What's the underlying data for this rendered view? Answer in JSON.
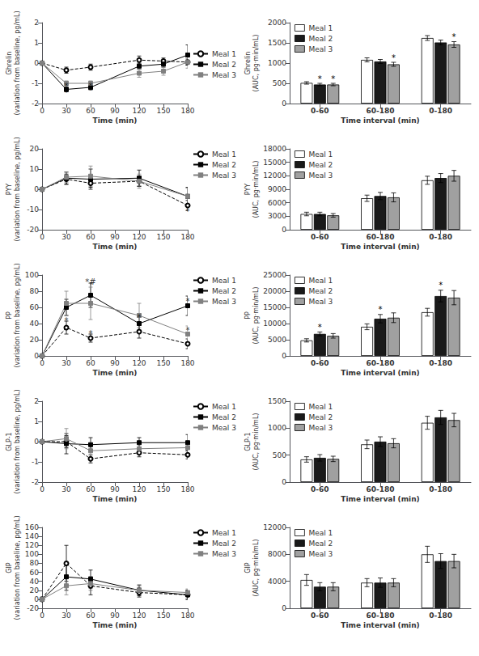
{
  "chart_data": [
    {
      "type": "line",
      "x": [
        0,
        30,
        60,
        120,
        150,
        180
      ],
      "xlabel": "Time (min)",
      "ylabel": "Ghrelin\n(variation from baseline, pg/mL)",
      "xlim": [
        0,
        180
      ],
      "xticks": [
        0,
        30,
        60,
        90,
        120,
        150,
        180
      ],
      "ylim": [
        -2,
        2
      ],
      "yticks": [
        -2,
        -1,
        0,
        1,
        2
      ],
      "grid": false,
      "legend": "center right",
      "series": [
        {
          "name": "Meal 1",
          "color": "#000000",
          "marker": "empty_circle",
          "line_style": "dashed",
          "values": [
            0,
            -0.35,
            -0.2,
            0.15,
            0.1,
            0.05
          ],
          "errors": [
            0,
            0.15,
            0.15,
            0.2,
            0.15,
            0.15
          ]
        },
        {
          "name": "Meal 2",
          "color": "#000000",
          "marker": "square",
          "line_style": "solid",
          "values": [
            0,
            -1.3,
            -1.2,
            -0.15,
            -0.05,
            0.4
          ],
          "errors": [
            0,
            0.12,
            0.12,
            0.15,
            0.15,
            0.5
          ]
        },
        {
          "name": "Meal 3",
          "color": "#808080",
          "marker": "square",
          "line_style": "solid",
          "values": [
            0,
            -1.0,
            -1.0,
            -0.5,
            -0.4,
            0.05
          ],
          "errors": [
            0,
            0.12,
            0.12,
            0.2,
            0.2,
            0.3
          ]
        }
      ],
      "annotations": [
        {
          "x": 30,
          "y": -1.44,
          "text": "*"
        },
        {
          "x": 60,
          "y": -1.34,
          "text": "*"
        },
        {
          "x": 30,
          "y": -1.14,
          "text": "*"
        },
        {
          "x": 60,
          "y": -1.14,
          "text": "*"
        }
      ]
    },
    {
      "type": "bar",
      "categories": [
        "0-60",
        "60-180",
        "0-180"
      ],
      "xlabel": "Time interval (min)",
      "ylabel": "Ghrelin\n(AUC, pg·min/mL)",
      "ylim": [
        0,
        2000
      ],
      "yticks": [
        0,
        500,
        1000,
        1500,
        2000
      ],
      "grid": false,
      "legend": "upper left",
      "series": [
        {
          "name": "Meal 1",
          "color": "#ffffff",
          "values": [
            510,
            1080,
            1620
          ],
          "errors": [
            30,
            50,
            60
          ]
        },
        {
          "name": "Meal 2",
          "color": "#1a1a1a",
          "values": [
            470,
            1040,
            1510
          ],
          "errors": [
            30,
            50,
            60
          ]
        },
        {
          "name": "Meal 3",
          "color": "#a0a0a0",
          "values": [
            470,
            970,
            1460
          ],
          "errors": [
            30,
            50,
            70
          ]
        }
      ],
      "annotations": [
        {
          "category": "0-60",
          "series": "Meal 2",
          "text": "*"
        },
        {
          "category": "0-60",
          "series": "Meal 3",
          "text": "*"
        },
        {
          "category": "60-180",
          "series": "Meal 3",
          "text": "*"
        },
        {
          "category": "0-180",
          "series": "Meal 3",
          "text": "*"
        }
      ]
    },
    {
      "type": "line",
      "x": [
        0,
        30,
        60,
        120,
        180
      ],
      "xlabel": "Time (min)",
      "ylabel": "PYY\n(variation from baseline, pg/mL)",
      "xlim": [
        0,
        180
      ],
      "xticks": [
        0,
        30,
        60,
        90,
        120,
        150,
        180
      ],
      "ylim": [
        -20,
        20
      ],
      "yticks": [
        -20,
        -10,
        0,
        10,
        20
      ],
      "grid": false,
      "legend": "upper right",
      "series": [
        {
          "name": "Meal 1",
          "color": "#000000",
          "marker": "empty_circle",
          "line_style": "dashed",
          "values": [
            0,
            5.0,
            3.0,
            4.0,
            -8.0
          ],
          "errors": [
            0,
            2.5,
            2.0,
            2.5,
            2.5
          ]
        },
        {
          "name": "Meal 2",
          "color": "#000000",
          "marker": "square",
          "line_style": "solid",
          "values": [
            0,
            5.5,
            5.0,
            5.5,
            -3.5
          ],
          "errors": [
            0,
            3.0,
            5.0,
            4.0,
            4.5
          ]
        },
        {
          "name": "Meal 3",
          "color": "#808080",
          "marker": "square",
          "line_style": "solid",
          "values": [
            0,
            6.0,
            6.5,
            4.0,
            -3.5
          ],
          "errors": [
            0,
            2.5,
            5.0,
            3.5,
            4.0
          ]
        }
      ],
      "annotations": [
        {
          "x": 180,
          "y": -11.0,
          "text": "*"
        }
      ]
    },
    {
      "type": "bar",
      "categories": [
        "0-60",
        "60-180",
        "0-180"
      ],
      "xlabel": "Time interval (min)",
      "ylabel": "PYY\n(AUC, pg·min/mL)",
      "ylim": [
        0,
        18000
      ],
      "yticks": [
        0,
        3000,
        6000,
        9000,
        12000,
        15000,
        18000
      ],
      "grid": false,
      "legend": "upper left",
      "series": [
        {
          "name": "Meal 1",
          "color": "#ffffff",
          "values": [
            3500,
            7000,
            11000
          ],
          "errors": [
            400,
            700,
            900
          ]
        },
        {
          "name": "Meal 2",
          "color": "#1a1a1a",
          "values": [
            3500,
            7500,
            11500
          ],
          "errors": [
            400,
            800,
            1000
          ]
        },
        {
          "name": "Meal 3",
          "color": "#a0a0a0",
          "values": [
            3200,
            7200,
            12000
          ],
          "errors": [
            400,
            1000,
            1200
          ]
        }
      ]
    },
    {
      "type": "line",
      "x": [
        0,
        30,
        60,
        120,
        180
      ],
      "xlabel": "Time (min)",
      "ylabel": "PP\n(variation from baseline, pg/mL)",
      "xlim": [
        0,
        180
      ],
      "xticks": [
        0,
        30,
        60,
        90,
        120,
        150,
        180
      ],
      "ylim": [
        0,
        100
      ],
      "yticks": [
        0,
        20,
        40,
        60,
        80,
        100
      ],
      "grid": false,
      "legend": "upper right",
      "series": [
        {
          "name": "Meal 1",
          "color": "#000000",
          "marker": "empty_circle",
          "line_style": "dashed",
          "values": [
            0,
            35,
            22,
            30,
            15
          ],
          "errors": [
            0,
            8,
            5,
            8,
            6
          ]
        },
        {
          "name": "Meal 2",
          "color": "#000000",
          "marker": "square",
          "line_style": "solid",
          "values": [
            0,
            60,
            75,
            40,
            62
          ],
          "errors": [
            0,
            10,
            15,
            8,
            12
          ]
        },
        {
          "name": "Meal 3",
          "color": "#808080",
          "marker": "square",
          "line_style": "solid",
          "values": [
            0,
            65,
            65,
            50,
            27
          ],
          "errors": [
            0,
            15,
            20,
            15,
            10
          ]
        }
      ],
      "annotations": [
        {
          "x": 30,
          "y": 44,
          "text": "*"
        },
        {
          "x": 60,
          "y": 28,
          "text": "*"
        },
        {
          "x": 60,
          "y": 92,
          "text": "*#"
        },
        {
          "x": 120,
          "y": 48,
          "text": "*"
        },
        {
          "x": 180,
          "y": 68,
          "text": "*"
        },
        {
          "x": 180,
          "y": 32,
          "text": "*"
        }
      ]
    },
    {
      "type": "bar",
      "categories": [
        "0-60",
        "60-180",
        "0-180"
      ],
      "xlabel": "Time interval (min)",
      "ylabel": "PP\n(AUC, pg·min/mL)",
      "ylim": [
        0,
        25000
      ],
      "yticks": [
        0,
        5000,
        10000,
        15000,
        20000,
        25000
      ],
      "grid": false,
      "legend": "upper left",
      "series": [
        {
          "name": "Meal 1",
          "color": "#ffffff",
          "values": [
            4800,
            9000,
            13500
          ],
          "errors": [
            500,
            900,
            1200
          ]
        },
        {
          "name": "Meal 2",
          "color": "#1a1a1a",
          "values": [
            6800,
            11500,
            18500
          ],
          "errors": [
            600,
            1300,
            1800
          ]
        },
        {
          "name": "Meal 3",
          "color": "#a0a0a0",
          "values": [
            6200,
            11800,
            18000
          ],
          "errors": [
            700,
            1500,
            2200
          ]
        }
      ],
      "annotations": [
        {
          "category": "0-60",
          "series": "Meal 2",
          "text": "*"
        },
        {
          "category": "60-180",
          "series": "Meal 2",
          "text": "*"
        },
        {
          "category": "0-180",
          "series": "Meal 2",
          "text": "*"
        }
      ]
    },
    {
      "type": "line",
      "x": [
        0,
        30,
        60,
        120,
        180
      ],
      "xlabel": "Time (min)",
      "ylabel": "GLP-1\n(variation from baseline, pg/mL)",
      "xlim": [
        0,
        180
      ],
      "xticks": [
        0,
        30,
        60,
        90,
        120,
        150,
        180
      ],
      "ylim": [
        -2,
        2
      ],
      "yticks": [
        -2,
        -1,
        0,
        1,
        2
      ],
      "grid": false,
      "legend": "upper right",
      "series": [
        {
          "name": "Meal 1",
          "color": "#000000",
          "marker": "empty_circle",
          "line_style": "dashed",
          "values": [
            0,
            0.0,
            -0.85,
            -0.55,
            -0.65
          ],
          "errors": [
            0,
            0.3,
            0.2,
            0.2,
            0.2
          ]
        },
        {
          "name": "Meal 2",
          "color": "#000000",
          "marker": "square",
          "line_style": "solid",
          "values": [
            0,
            -0.1,
            -0.15,
            -0.05,
            -0.05
          ],
          "errors": [
            0,
            0.5,
            0.35,
            0.25,
            0.4
          ]
        },
        {
          "name": "Meal 3",
          "color": "#808080",
          "marker": "square",
          "line_style": "solid",
          "values": [
            0,
            0.15,
            -0.45,
            -0.35,
            -0.3
          ],
          "errors": [
            0,
            0.5,
            0.35,
            0.25,
            0.3
          ]
        }
      ]
    },
    {
      "type": "bar",
      "categories": [
        "0-60",
        "60-180",
        "0-180"
      ],
      "xlabel": "Time interval (min)",
      "ylabel": "GLP-1\n(AUC, pg·min/mL)",
      "ylim": [
        0,
        1500
      ],
      "yticks": [
        0,
        500,
        1000,
        1500
      ],
      "grid": false,
      "legend": "upper left",
      "series": [
        {
          "name": "Meal 1",
          "color": "#ffffff",
          "values": [
            420,
            700,
            1100
          ],
          "errors": [
            50,
            80,
            120
          ]
        },
        {
          "name": "Meal 2",
          "color": "#1a1a1a",
          "values": [
            450,
            750,
            1200
          ],
          "errors": [
            60,
            90,
            130
          ]
        },
        {
          "name": "Meal 3",
          "color": "#a0a0a0",
          "values": [
            430,
            720,
            1150
          ],
          "errors": [
            50,
            85,
            125
          ]
        }
      ]
    },
    {
      "type": "line",
      "x": [
        0,
        30,
        60,
        120,
        180
      ],
      "xlabel": "Time (min)",
      "ylabel": "GIP\n(variation from baseline, pg/mL)",
      "xlim": [
        0,
        180
      ],
      "xticks": [
        0,
        30,
        60,
        90,
        120,
        150,
        180
      ],
      "ylim": [
        -20,
        160
      ],
      "yticks": [
        -20,
        0,
        20,
        40,
        60,
        80,
        100,
        120,
        140,
        160
      ],
      "grid": false,
      "legend": "upper right",
      "series": [
        {
          "name": "Meal 1",
          "color": "#000000",
          "marker": "empty_circle",
          "line_style": "dashed",
          "values": [
            0,
            80,
            30,
            15,
            10
          ],
          "errors": [
            0,
            40,
            20,
            10,
            10
          ]
        },
        {
          "name": "Meal 2",
          "color": "#000000",
          "marker": "square",
          "line_style": "solid",
          "values": [
            0,
            50,
            45,
            20,
            10
          ],
          "errors": [
            0,
            30,
            20,
            12,
            10
          ]
        },
        {
          "name": "Meal 3",
          "color": "#808080",
          "marker": "square",
          "line_style": "solid",
          "values": [
            0,
            30,
            35,
            20,
            15
          ],
          "errors": [
            0,
            20,
            15,
            10,
            8
          ]
        }
      ]
    },
    {
      "type": "bar",
      "categories": [
        "0-60",
        "60-180",
        "0-180"
      ],
      "xlabel": "Time interval (min)",
      "ylabel": "GIP\n(AUC, pg·min/mL)",
      "ylim": [
        0,
        12000
      ],
      "yticks": [
        0,
        4000,
        8000,
        12000
      ],
      "grid": false,
      "legend": "upper left",
      "series": [
        {
          "name": "Meal 1",
          "color": "#ffffff",
          "values": [
            4200,
            3800,
            8000
          ],
          "errors": [
            800,
            600,
            1200
          ]
        },
        {
          "name": "Meal 2",
          "color": "#1a1a1a",
          "values": [
            3200,
            3800,
            7000
          ],
          "errors": [
            600,
            700,
            1100
          ]
        },
        {
          "name": "Meal 3",
          "color": "#a0a0a0",
          "values": [
            3200,
            3800,
            7000
          ],
          "errors": [
            600,
            600,
            1000
          ]
        }
      ]
    }
  ]
}
